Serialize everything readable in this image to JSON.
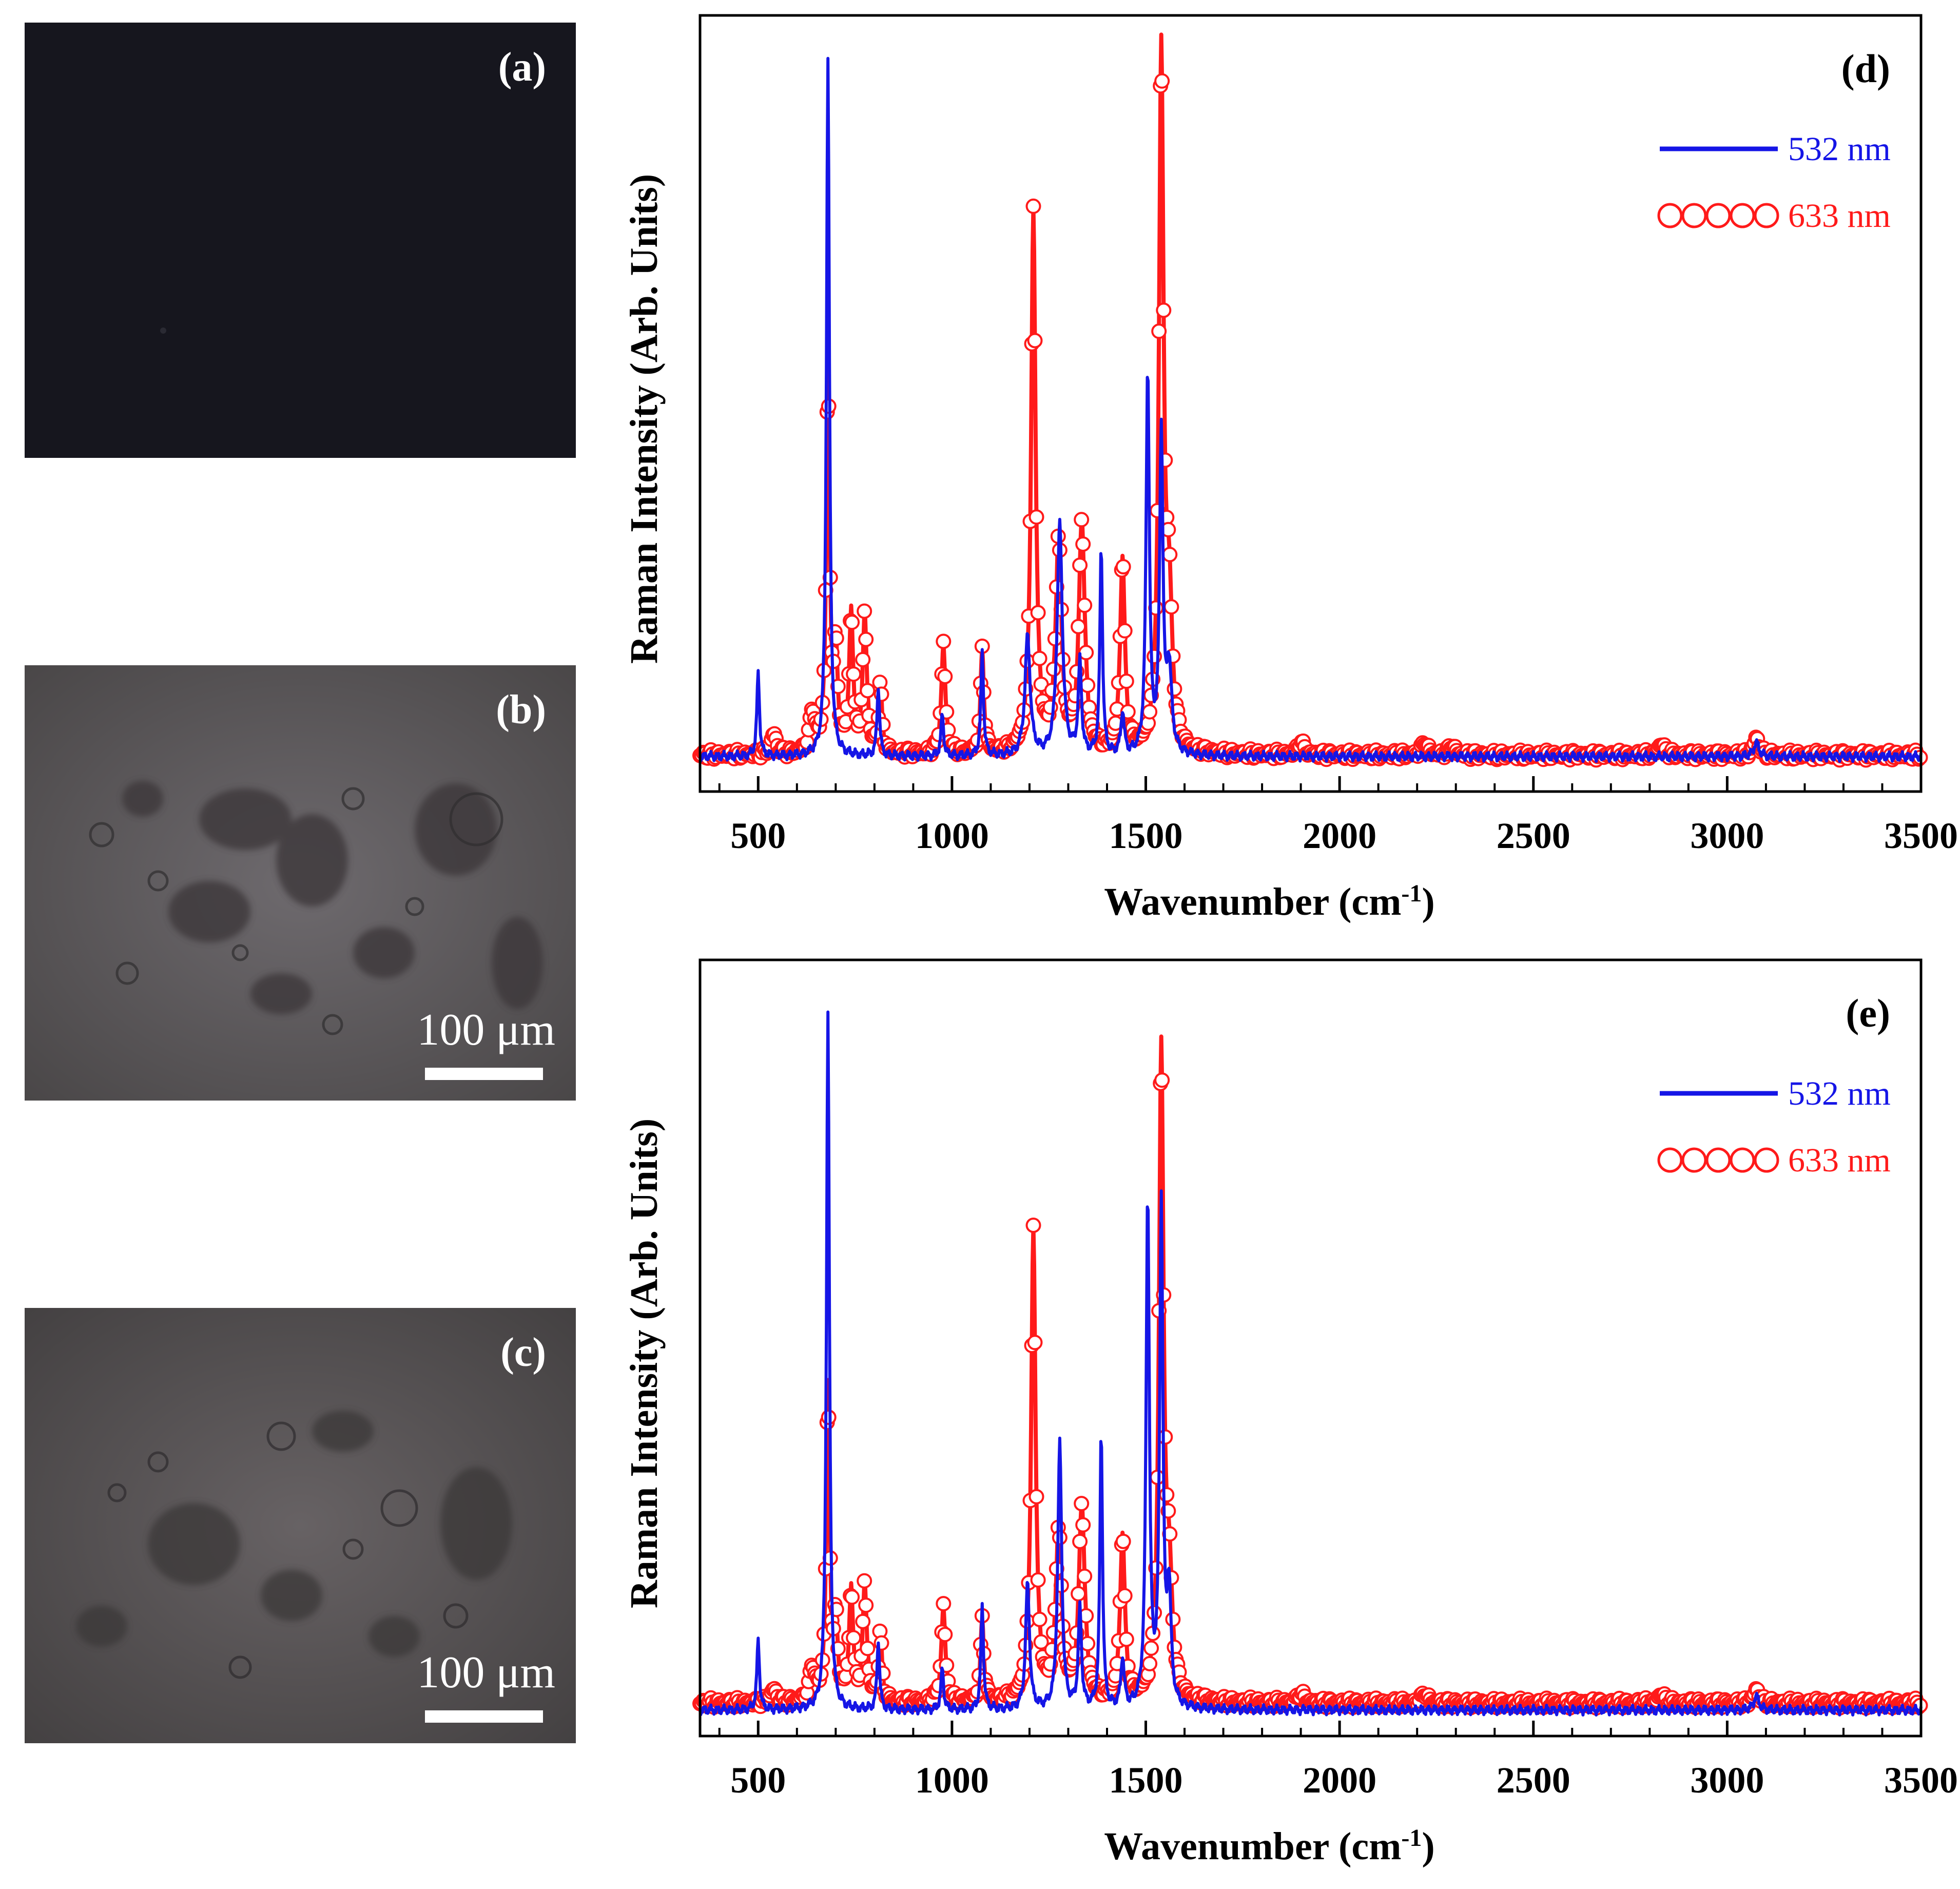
{
  "images": [
    {
      "label": "(a)",
      "scale_text": "",
      "bg": "#13131a"
    },
    {
      "label": "(b)",
      "scale_text": "100 μm",
      "bg": "#5e5a5e"
    },
    {
      "label": "(c)",
      "scale_text": "100 μm",
      "bg": "#595557"
    }
  ],
  "chart_data": [
    {
      "type": "line",
      "panel_label": "(d)",
      "xlabel": "Wavenumber (cm",
      "xlabel_sup": "-1",
      "xlabel_suffix": ")",
      "ylabel": "Raman Intensity (Arb. Units)",
      "xlim": [
        350,
        3500
      ],
      "ylim": [
        0,
        1.0
      ],
      "xticks": [
        500,
        1000,
        1500,
        2000,
        2500,
        3000,
        3500
      ],
      "grid": false,
      "legend_position": "top-right",
      "series": [
        {
          "name": "532 nm",
          "color": "#1515e6",
          "style": "line",
          "baseline": 0.028,
          "peaks": [
            [
              500,
              0.12,
              4
            ],
            [
              680,
              1.0,
              4.5
            ],
            [
              810,
              0.1,
              4
            ],
            [
              975,
              0.06,
              4
            ],
            [
              1078,
              0.15,
              4
            ],
            [
              1195,
              0.17,
              8
            ],
            [
              1278,
              0.33,
              8
            ],
            [
              1330,
              0.13,
              5
            ],
            [
              1385,
              0.3,
              4
            ],
            [
              1440,
              0.06,
              5
            ],
            [
              1505,
              0.55,
              5
            ],
            [
              1540,
              0.46,
              5
            ],
            [
              1560,
              0.12,
              8
            ],
            [
              3075,
              0.02,
              8
            ]
          ],
          "x": [
            350,
            500,
            680,
            810,
            975,
            1078,
            1195,
            1278,
            1330,
            1385,
            1440,
            1505,
            1540,
            1560,
            1700,
            2000,
            2500,
            3075,
            3500
          ],
          "y": [
            0.028,
            0.15,
            1.0,
            0.13,
            0.09,
            0.18,
            0.2,
            0.36,
            0.16,
            0.33,
            0.09,
            0.58,
            0.49,
            0.15,
            0.028,
            0.028,
            0.028,
            0.048,
            0.028
          ]
        },
        {
          "name": "633 nm",
          "color": "#ff1a1a",
          "style": "line-markers",
          "baseline": 0.03,
          "peaks": [
            [
              540,
              0.03,
              8
            ],
            [
              640,
              0.06,
              8
            ],
            [
              680,
              0.55,
              5
            ],
            [
              700,
              0.14,
              6
            ],
            [
              740,
              0.2,
              6
            ],
            [
              775,
              0.2,
              6
            ],
            [
              815,
              0.1,
              5
            ],
            [
              978,
              0.16,
              6
            ],
            [
              1078,
              0.15,
              5
            ],
            [
              1210,
              0.77,
              7
            ],
            [
              1275,
              0.3,
              9
            ],
            [
              1335,
              0.33,
              9
            ],
            [
              1440,
              0.28,
              7
            ],
            [
              1540,
              1.0,
              7
            ],
            [
              1560,
              0.2,
              9
            ],
            [
              1900,
              0.02,
              8
            ],
            [
              2220,
              0.02,
              8
            ],
            [
              2290,
              0.015,
              8
            ],
            [
              2830,
              0.018,
              8
            ],
            [
              3075,
              0.025,
              8
            ]
          ],
          "x": [
            350,
            680,
            740,
            775,
            978,
            1078,
            1210,
            1275,
            1335,
            1440,
            1540,
            1700,
            1900,
            2220,
            2500,
            2830,
            3075,
            3500
          ],
          "y": [
            0.03,
            0.58,
            0.23,
            0.23,
            0.19,
            0.18,
            0.8,
            0.33,
            0.36,
            0.31,
            1.0,
            0.03,
            0.05,
            0.05,
            0.03,
            0.048,
            0.055,
            0.03
          ]
        }
      ]
    },
    {
      "type": "line",
      "panel_label": "(e)",
      "xlabel": "Wavenumber (cm",
      "xlabel_sup": "-1",
      "xlabel_suffix": ")",
      "ylabel": "Raman Intensity (Arb. Units)",
      "xlim": [
        350,
        3500
      ],
      "ylim": [
        0,
        1.0
      ],
      "xticks": [
        500,
        1000,
        1500,
        2000,
        2500,
        3000,
        3500
      ],
      "grid": false,
      "legend_position": "top-right",
      "series": [
        {
          "name": "532 nm",
          "color": "#1515e6",
          "style": "line",
          "baseline": 0.015,
          "peaks": [
            [
              500,
              0.1,
              4
            ],
            [
              680,
              1.0,
              4.5
            ],
            [
              810,
              0.1,
              4
            ],
            [
              975,
              0.06,
              4
            ],
            [
              1078,
              0.15,
              4
            ],
            [
              1195,
              0.18,
              6
            ],
            [
              1278,
              0.38,
              6
            ],
            [
              1330,
              0.14,
              5
            ],
            [
              1385,
              0.4,
              4
            ],
            [
              1440,
              0.07,
              5
            ],
            [
              1505,
              0.73,
              5
            ],
            [
              1540,
              0.72,
              5
            ],
            [
              1560,
              0.16,
              6
            ],
            [
              3075,
              0.02,
              8
            ]
          ],
          "x": [
            350,
            500,
            680,
            810,
            975,
            1078,
            1195,
            1278,
            1330,
            1385,
            1440,
            1505,
            1540,
            1560,
            1700,
            2000,
            2500,
            3075,
            3500
          ],
          "y": [
            0.015,
            0.12,
            1.0,
            0.12,
            0.08,
            0.17,
            0.2,
            0.4,
            0.16,
            0.42,
            0.09,
            0.75,
            0.74,
            0.18,
            0.015,
            0.015,
            0.015,
            0.035,
            0.015
          ]
        },
        {
          "name": "633 nm",
          "color": "#ff1a1a",
          "style": "line-markers",
          "baseline": 0.025,
          "peaks": [
            [
              540,
              0.02,
              8
            ],
            [
              640,
              0.05,
              8
            ],
            [
              680,
              0.45,
              5
            ],
            [
              700,
              0.11,
              6
            ],
            [
              740,
              0.16,
              6
            ],
            [
              775,
              0.17,
              6
            ],
            [
              815,
              0.1,
              5
            ],
            [
              978,
              0.14,
              6
            ],
            [
              1078,
              0.12,
              5
            ],
            [
              1210,
              0.67,
              7
            ],
            [
              1275,
              0.24,
              9
            ],
            [
              1335,
              0.28,
              9
            ],
            [
              1440,
              0.24,
              7
            ],
            [
              1540,
              0.93,
              7
            ],
            [
              1560,
              0.16,
              9
            ],
            [
              1900,
              0.015,
              8
            ],
            [
              2220,
              0.015,
              8
            ],
            [
              2830,
              0.015,
              8
            ],
            [
              3075,
              0.02,
              8
            ]
          ],
          "x": [
            350,
            680,
            740,
            775,
            978,
            1078,
            1210,
            1275,
            1335,
            1440,
            1540,
            1700,
            1900,
            2220,
            2500,
            2830,
            3075,
            3500
          ],
          "y": [
            0.025,
            0.48,
            0.19,
            0.2,
            0.17,
            0.15,
            0.7,
            0.27,
            0.31,
            0.27,
            0.93,
            0.025,
            0.04,
            0.04,
            0.025,
            0.04,
            0.045,
            0.025
          ]
        }
      ]
    }
  ]
}
